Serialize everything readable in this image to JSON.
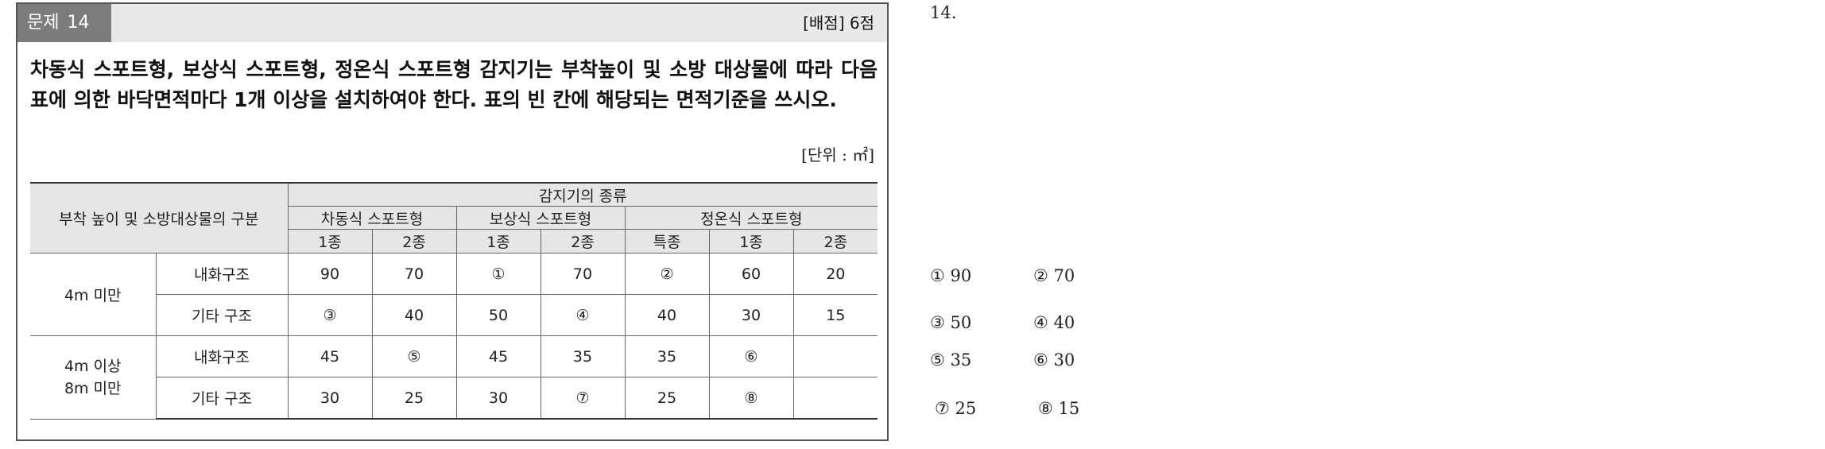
{
  "question": {
    "label": "문제",
    "number": "14",
    "score": "[배점] 6점",
    "text": "차동식 스포트형, 보상식 스포트형, 정온식 스포트형 감지기는 부착높이 및 소방 대상물에 따라 다음 표에 의한 바닥면적마다 1개 이상을 설치하여야 한다. 표의 빈 칸에 해당되는 면적기준을 쓰시오.",
    "unit": "[단위 : ㎡]"
  },
  "table": {
    "corner": "부착 높이 및 소방대상물의 구분",
    "group_header": "감지기의 종류",
    "types": [
      "차동식 스포트형",
      "보상식 스포트형",
      "정온식 스포트형"
    ],
    "grades": [
      "1종",
      "2종",
      "1종",
      "2종",
      "특종",
      "1종",
      "2종"
    ],
    "height_groups": [
      "4m 미만",
      "4m 이상\n8m 미만"
    ],
    "structures": [
      "내화구조",
      "기타 구조",
      "내화구조",
      "기타 구조"
    ],
    "rows": [
      [
        "90",
        "70",
        "①",
        "70",
        "②",
        "60",
        "20"
      ],
      [
        "③",
        "40",
        "50",
        "④",
        "40",
        "30",
        "15"
      ],
      [
        "45",
        "⑤",
        "45",
        "35",
        "35",
        "⑥",
        ""
      ],
      [
        "30",
        "25",
        "30",
        "⑦",
        "25",
        "⑧",
        ""
      ]
    ]
  },
  "answer_sheet": {
    "number": "14.",
    "answers": [
      "① 90",
      "② 70",
      "③ 50",
      "④ 40",
      "⑤ 35",
      "⑥ 30",
      "⑦ 25",
      "⑧ 15"
    ]
  }
}
